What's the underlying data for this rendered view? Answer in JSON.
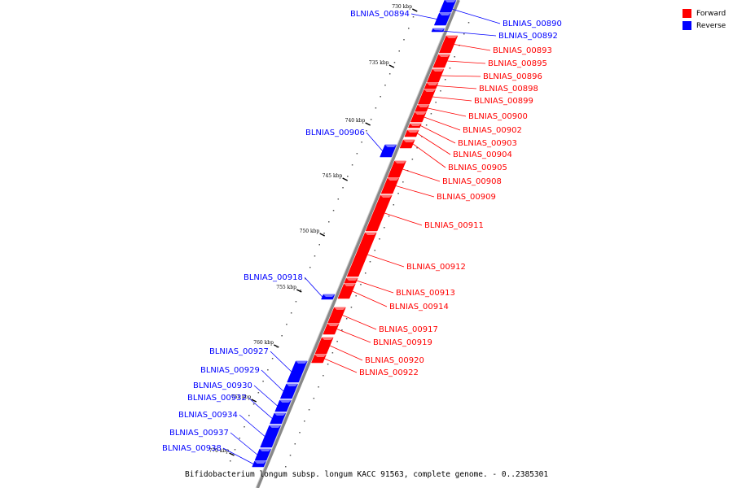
{
  "title": "Bifidobacterium longum subsp. longum KACC 91563, complete genome. - 0..2385301",
  "legend": [
    {
      "label": "Forward",
      "color": "#ff0000"
    },
    {
      "label": "Reverse",
      "color": "#0000ff"
    }
  ],
  "colors": {
    "forward": "#ff0000",
    "reverse": "#0000ff",
    "backbone": "#888888"
  },
  "ticks": [
    {
      "label": "730 kbp"
    },
    {
      "label": "735 kbp"
    },
    {
      "label": "740 kbp"
    },
    {
      "label": "745 kbp"
    },
    {
      "label": "750 kbp"
    },
    {
      "label": "755 kbp"
    },
    {
      "label": "760 kbp"
    },
    {
      "label": "765 kbp"
    },
    {
      "label": "770 kbp"
    }
  ],
  "genes": [
    {
      "name": "BLNIAS_00890",
      "strand": "reverse"
    },
    {
      "name": "BLNIAS_00892",
      "strand": "reverse"
    },
    {
      "name": "BLNIAS_00894",
      "strand": "reverse"
    },
    {
      "name": "BLNIAS_00893",
      "strand": "forward"
    },
    {
      "name": "BLNIAS_00895",
      "strand": "forward"
    },
    {
      "name": "BLNIAS_00896",
      "strand": "forward"
    },
    {
      "name": "BLNIAS_00898",
      "strand": "forward"
    },
    {
      "name": "BLNIAS_00899",
      "strand": "forward"
    },
    {
      "name": "BLNIAS_00900",
      "strand": "forward"
    },
    {
      "name": "BLNIAS_00902",
      "strand": "forward"
    },
    {
      "name": "BLNIAS_00903",
      "strand": "forward"
    },
    {
      "name": "BLNIAS_00904",
      "strand": "forward"
    },
    {
      "name": "BLNIAS_00905",
      "strand": "forward"
    },
    {
      "name": "BLNIAS_00906",
      "strand": "reverse"
    },
    {
      "name": "BLNIAS_00908",
      "strand": "forward"
    },
    {
      "name": "BLNIAS_00909",
      "strand": "forward"
    },
    {
      "name": "BLNIAS_00911",
      "strand": "forward"
    },
    {
      "name": "BLNIAS_00912",
      "strand": "forward"
    },
    {
      "name": "BLNIAS_00913",
      "strand": "forward"
    },
    {
      "name": "BLNIAS_00914",
      "strand": "forward"
    },
    {
      "name": "BLNIAS_00917",
      "strand": "forward"
    },
    {
      "name": "BLNIAS_00918",
      "strand": "reverse"
    },
    {
      "name": "BLNIAS_00919",
      "strand": "forward"
    },
    {
      "name": "BLNIAS_00920",
      "strand": "forward"
    },
    {
      "name": "BLNIAS_00922",
      "strand": "forward"
    },
    {
      "name": "BLNIAS_00927",
      "strand": "reverse"
    },
    {
      "name": "BLNIAS_00929",
      "strand": "reverse"
    },
    {
      "name": "BLNIAS_00930",
      "strand": "reverse"
    },
    {
      "name": "BLNIAS_00932",
      "strand": "reverse"
    },
    {
      "name": "BLNIAS_00934",
      "strand": "reverse"
    },
    {
      "name": "BLNIAS_00937",
      "strand": "reverse"
    },
    {
      "name": "BLNIAS_00938",
      "strand": "reverse"
    }
  ]
}
